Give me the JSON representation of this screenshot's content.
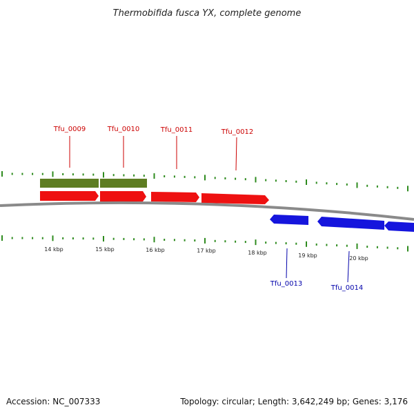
{
  "title": "Thermobifida fusca YX, complete genome",
  "footer": {
    "accession": "Accession: NC_007333",
    "summary": "Topology: circular; Length: 3,642,249 bp; Genes: 3,176"
  },
  "colors": {
    "backbone": "#8a8a8a",
    "tick": "#2e8b1e",
    "forward_gene": "#ee1111",
    "reverse_gene": "#1515dd",
    "feature_band": "#5e7d22",
    "forward_label": "#cc0000",
    "reverse_label": "#0000aa"
  },
  "scale": {
    "tick_labels": [
      "14 kbp",
      "15 kbp",
      "16 kbp",
      "17 kbp",
      "18 kbp",
      "19 kbp",
      "20 kbp"
    ]
  },
  "genes": [
    {
      "name": "Tfu_0009",
      "strand": "forward"
    },
    {
      "name": "Tfu_0010",
      "strand": "forward"
    },
    {
      "name": "Tfu_0011",
      "strand": "forward"
    },
    {
      "name": "Tfu_0012",
      "strand": "forward"
    },
    {
      "name": "Tfu_0013",
      "strand": "reverse"
    },
    {
      "name": "Tfu_0014",
      "strand": "reverse"
    }
  ]
}
